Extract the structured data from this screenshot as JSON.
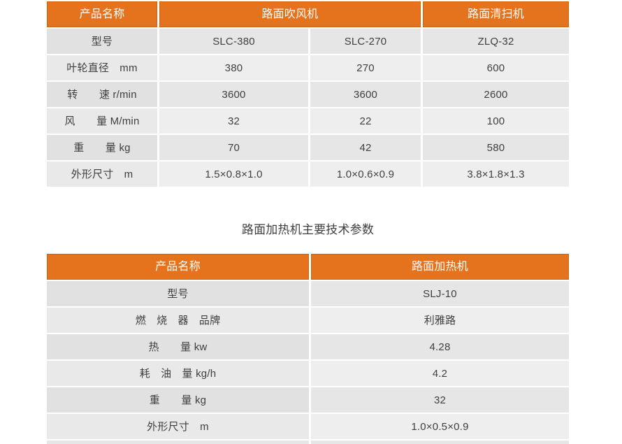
{
  "colors": {
    "header_bg": "#e5731d",
    "header_border": "#d0640f",
    "header_text": "#ffffff",
    "body_text": "#3f3f3f",
    "row_dark": "#e6e6e6",
    "row_light": "#eeeeee",
    "label_dark": "#e1e1e1",
    "label_light": "#e9e9e9",
    "page_bg": "#ffffff"
  },
  "table1": {
    "header": {
      "product_name": "产品名称",
      "blower": "路面吹风机",
      "sweeper": "路面清扫机"
    },
    "rows": [
      {
        "label": "型号",
        "values": [
          "SLC-380",
          "SLC-270",
          "ZLQ-32"
        ]
      },
      {
        "label": "叶轮直径　mm",
        "values": [
          "380",
          "270",
          "600"
        ]
      },
      {
        "label": "转　　速 r/min",
        "values": [
          "3600",
          "3600",
          "2600"
        ]
      },
      {
        "label": "风　　量 M/min",
        "values": [
          "32",
          "22",
          "100"
        ]
      },
      {
        "label": "重　　量 kg",
        "values": [
          "70",
          "42",
          "580"
        ]
      },
      {
        "label": "外形尺寸　m",
        "values": [
          "1.5×0.8×1.0",
          "1.0×0.6×0.9",
          "3.8×1.8×1.3"
        ]
      }
    ]
  },
  "table2": {
    "title": "路面加热机主要技术参数",
    "header": {
      "product_name": "产品名称",
      "heater": "路面加热机"
    },
    "rows": [
      {
        "label": "型号",
        "value": "SLJ-10"
      },
      {
        "label": "燃　烧　器　品牌",
        "value": "利雅路"
      },
      {
        "label": "热　　量 kw",
        "value": "4.28"
      },
      {
        "label": "耗　油　量 kg/h",
        "value": "4.2"
      },
      {
        "label": "重　　量 kg",
        "value": "32"
      },
      {
        "label": "外形尺寸　m",
        "value": "1.0×0.5×0.9"
      }
    ]
  }
}
